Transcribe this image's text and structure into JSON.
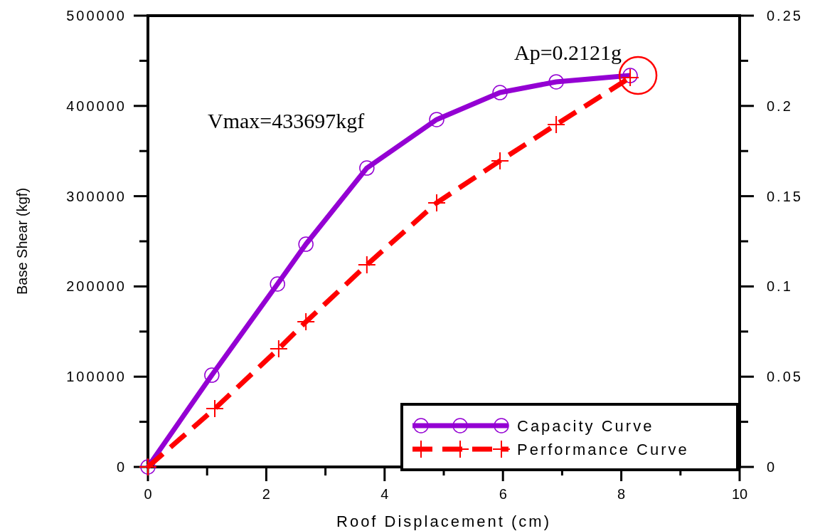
{
  "chart_data": {
    "type": "line",
    "xlabel": "Roof Displacement (cm)",
    "ylabel": "Base Shear (kgf)",
    "xlim": [
      0,
      10
    ],
    "xticks": [
      0,
      {
        "value": 1,
        "label": null
      },
      2,
      {
        "value": 3,
        "label": null
      },
      4,
      {
        "value": 5,
        "label": null
      },
      6,
      {
        "value": 7,
        "label": null
      },
      8,
      {
        "value": 9,
        "label": null
      },
      10
    ],
    "ylim": [
      0,
      500000
    ],
    "yticks": [
      0,
      {
        "value": 50000,
        "label": null
      },
      100000,
      {
        "value": 150000,
        "label": null
      },
      200000,
      {
        "value": 250000,
        "label": null
      },
      300000,
      {
        "value": 350000,
        "label": null
      },
      400000,
      {
        "value": 450000,
        "label": null
      },
      500000
    ],
    "y2lim": [
      0,
      0.25
    ],
    "y2ticks": [
      0,
      {
        "value": 0.025,
        "label": null
      },
      {
        "value": 0.05,
        "label": "0.05"
      },
      {
        "value": 0.075,
        "label": null
      },
      {
        "value": 0.1,
        "label": "0.1"
      },
      {
        "value": 0.125,
        "label": null
      },
      {
        "value": 0.15,
        "label": "0.15"
      },
      {
        "value": 0.175,
        "label": null
      },
      {
        "value": 0.2,
        "label": "0.2"
      },
      {
        "value": 0.225,
        "label": null
      },
      {
        "value": 0.25,
        "label": "0.25"
      }
    ],
    "series": [
      {
        "name": "Capacity Curve",
        "color": "#9400d3",
        "marker": "circle",
        "line_style": "solid",
        "x": [
          0,
          1.08,
          2.19,
          2.67,
          3.7,
          4.88,
          5.95,
          6.9,
          8.15
        ],
        "values": [
          0,
          101700,
          202700,
          246800,
          331200,
          384900,
          414800,
          426700,
          433697
        ]
      },
      {
        "name": "Performance Curve",
        "color": "#ff0000",
        "marker": "cross",
        "line_style": "dashed",
        "axis": "y2",
        "x": [
          0,
          1.13,
          2.21,
          2.67,
          3.7,
          4.88,
          5.95,
          6.9,
          8.15
        ],
        "values": [
          0,
          0.0323,
          0.0655,
          0.0804,
          0.112,
          0.1463,
          0.1696,
          0.1897,
          0.2157
        ]
      }
    ],
    "annotations": [
      {
        "text": "Ap=0.2121g",
        "x": 8.15,
        "y": 433697
      },
      "Vmax=433697kgf"
    ],
    "legend": "bottom right",
    "grid": false
  }
}
